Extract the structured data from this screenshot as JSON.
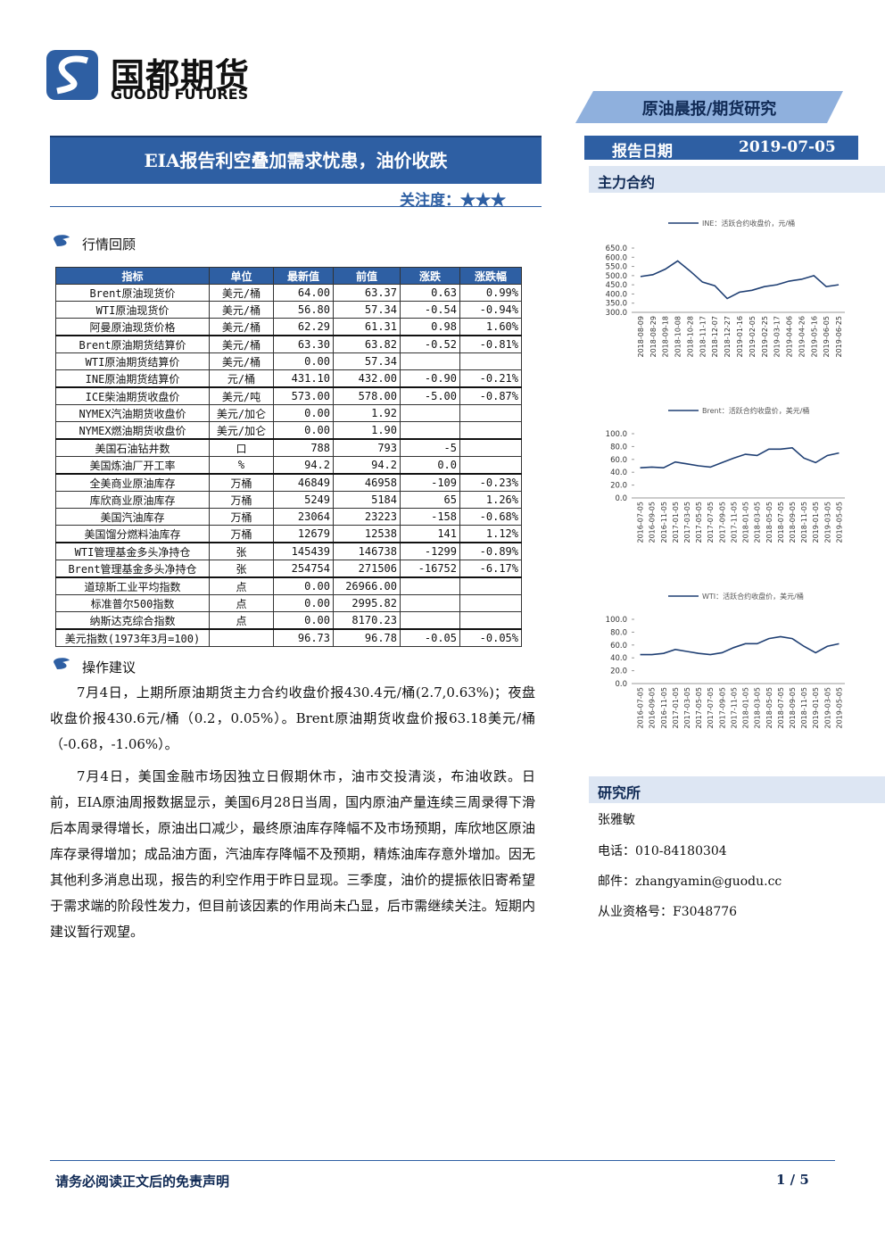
{
  "header": {
    "brand": "国都期货",
    "brand_en": "GUODU FUTURES",
    "category": "原油晨报/期货研究"
  },
  "report": {
    "title": "EIA报告利空叠加需求忧患，油价收跌",
    "attention_label": "关注度：",
    "attention_stars": "★★★",
    "date_label": "报告日期",
    "date": "2019-07-05"
  },
  "sections": {
    "market_review": "行情回顾",
    "advice": "操作建议",
    "main_contract": "主力合约",
    "research": "研究所"
  },
  "table": {
    "header": [
      "指标",
      "单位",
      "最新值",
      "前值",
      "涨跌",
      "涨跌幅"
    ],
    "rows": [
      [
        "Brent原油现货价",
        "美元/桶",
        "64.00",
        "63.37",
        "0.63",
        "0.99%"
      ],
      [
        "WTI原油现货价",
        "美元/桶",
        "56.80",
        "57.34",
        "-0.54",
        "-0.94%"
      ],
      [
        "阿曼原油现货价格",
        "美元/桶",
        "62.29",
        "61.31",
        "0.98",
        "1.60%"
      ],
      [
        "Brent原油期货结算价",
        "美元/桶",
        "63.30",
        "63.82",
        "-0.52",
        "-0.81%"
      ],
      [
        "WTI原油期货结算价",
        "美元/桶",
        "0.00",
        "57.34",
        null,
        null
      ],
      [
        "INE原油期货结算价",
        "元/桶",
        "431.10",
        "432.00",
        "-0.90",
        "-0.21%"
      ],
      [
        "ICE柴油期货收盘价",
        "美元/吨",
        "573.00",
        "578.00",
        "-5.00",
        "-0.87%"
      ],
      [
        "NYMEX汽油期货收盘价",
        "美元/加仑",
        "0.00",
        "1.92",
        null,
        null
      ],
      [
        "NYMEX燃油期货收盘价",
        "美元/加仑",
        "0.00",
        "1.90",
        null,
        null
      ],
      [
        "美国石油钻井数",
        "口",
        "788",
        "793",
        "-5",
        null
      ],
      [
        "美国炼油厂开工率",
        "%",
        "94.2",
        "94.2",
        "0.0",
        null
      ],
      [
        "全美商业原油库存",
        "万桶",
        "46849",
        "46958",
        "-109",
        "-0.23%"
      ],
      [
        "库欣商业原油库存",
        "万桶",
        "5249",
        "5184",
        "65",
        "1.26%"
      ],
      [
        "美国汽油库存",
        "万桶",
        "23064",
        "23223",
        "-158",
        "-0.68%"
      ],
      [
        "美国馏分燃料油库存",
        "万桶",
        "12679",
        "12538",
        "141",
        "1.12%"
      ],
      [
        "WTI管理基金多头净持仓",
        "张",
        "145439",
        "146738",
        "-1299",
        "-0.89%"
      ],
      [
        "Brent管理基金多头净持仓",
        "张",
        "254754",
        "271506",
        "-16752",
        "-6.17%"
      ],
      [
        "道琼斯工业平均指数",
        "点",
        "0.00",
        "26966.00",
        null,
        null
      ],
      [
        "标准普尔500指数",
        "点",
        "0.00",
        "2995.82",
        null,
        null
      ],
      [
        "纳斯达克综合指数",
        "点",
        "0.00",
        "8170.23",
        null,
        null
      ],
      [
        "美元指数(1973年3月=100)",
        null,
        "96.73",
        "96.78",
        "-0.05",
        "-0.05%"
      ]
    ]
  },
  "paragraphs": [
    "7月4日，上期所原油期货主力合约收盘价报430.4元/桶(2.7,0.63%)；夜盘收盘价报430.6元/桶（0.2，0.05%）。Brent原油期货收盘价报63.18美元/桶（-0.68，-1.06%）。",
    "7月4日，美国金融市场因独立日假期休市，油市交投清淡，布油收跌。日前，EIA原油周报数据显示，美国6月28日当周，国内原油产量连续三周录得下滑后本周录得增长，原油出口减少，最终原油库存降幅不及市场预期，库欣地区原油库存录得增加；成品油方面，汽油库存降幅不及预期，精炼油库存意外增加。因无其他利多消息出现，报告的利空作用于昨日显现。三季度，油价的提振依旧寄希望于需求端的阶段性发力，但目前该因素的作用尚未凸显，后市需继续关注。短期内建议暂行观望。"
  ],
  "contact": {
    "name": "张雅敏",
    "phone": "电话：010-84180304",
    "email": "邮件：zhangyamin@guodu.cc",
    "license": "从业资格号：F3048776"
  },
  "footer": {
    "disclaimer": "请务必阅读正文后的免责声明",
    "page": "1 / 5"
  },
  "chart_data": [
    {
      "type": "line",
      "x": [
        "2018-08-09",
        "2018-08-29",
        "2018-09-18",
        "2018-10-08",
        "2018-10-28",
        "2018-11-17",
        "2018-12-07",
        "2018-12-27",
        "2019-01-16",
        "2019-02-05",
        "2019-02-25",
        "2019-03-17",
        "2019-04-06",
        "2019-04-26",
        "2019-05-16",
        "2019-06-05",
        "2019-06-25"
      ],
      "series": [
        {
          "name": "INE：活跃合约收盘价，元/桶",
          "color": "#1f3f73",
          "values": [
            495,
            505,
            535,
            580,
            525,
            465,
            445,
            375,
            410,
            420,
            440,
            450,
            470,
            480,
            500,
            440,
            450
          ]
        }
      ],
      "ylim": [
        300,
        650
      ],
      "yticks": [
        {
          "value": 300,
          "label": "300.0"
        },
        {
          "value": 350,
          "label": "350.0"
        },
        {
          "value": 400,
          "label": "400.0"
        },
        {
          "value": 450,
          "label": "450.0"
        },
        {
          "value": 500,
          "label": "500.0"
        },
        {
          "value": 550,
          "label": "550.0"
        },
        {
          "value": 600,
          "label": "600.0"
        },
        {
          "value": 650,
          "label": "650.0"
        }
      ]
    },
    {
      "type": "line",
      "x": [
        "2016-07-05",
        "2016-09-05",
        "2016-11-05",
        "2017-01-05",
        "2017-03-05",
        "2017-05-05",
        "2017-07-05",
        "2017-09-05",
        "2017-11-05",
        "2018-01-05",
        "2018-03-05",
        "2018-05-05",
        "2018-07-05",
        "2018-09-05",
        "2018-11-05",
        "2019-01-05",
        "2019-03-05",
        "2019-05-05"
      ],
      "series": [
        {
          "name": "Brent：活跃合约收盘价，美元/桶",
          "color": "#1f3f73",
          "values": [
            47,
            48,
            47,
            56,
            53,
            50,
            48,
            55,
            62,
            68,
            66,
            76,
            76,
            78,
            62,
            55,
            66,
            70
          ]
        }
      ],
      "ylim": [
        0,
        100
      ],
      "yticks": [
        {
          "value": 0,
          "label": "0.0"
        },
        {
          "value": 20,
          "label": "20.0"
        },
        {
          "value": 40,
          "label": "40.0"
        },
        {
          "value": 60,
          "label": "60.0"
        },
        {
          "value": 80,
          "label": "80.0"
        },
        {
          "value": 100,
          "label": "100.0"
        }
      ]
    },
    {
      "type": "line",
      "x": [
        "2016-07-05",
        "2016-09-05",
        "2016-11-05",
        "2017-01-05",
        "2017-03-05",
        "2017-05-05",
        "2017-07-05",
        "2017-09-05",
        "2017-11-05",
        "2018-01-05",
        "2018-03-05",
        "2018-05-05",
        "2018-07-05",
        "2018-09-05",
        "2018-11-05",
        "2019-01-05",
        "2019-03-05",
        "2019-05-05"
      ],
      "series": [
        {
          "name": "WTI：活跃合约收盘价，美元/桶",
          "color": "#1f3f73",
          "values": [
            45,
            45,
            47,
            53,
            50,
            47,
            45,
            48,
            56,
            62,
            62,
            70,
            73,
            70,
            58,
            48,
            58,
            62
          ]
        }
      ],
      "ylim": [
        0,
        100
      ],
      "yticks": [
        {
          "value": 0,
          "label": "0.0"
        },
        {
          "value": 20,
          "label": "20.0"
        },
        {
          "value": 40,
          "label": "40.0"
        },
        {
          "value": 60,
          "label": "60.0"
        },
        {
          "value": 80,
          "label": "80.0"
        },
        {
          "value": 100,
          "label": "100.0"
        }
      ]
    }
  ]
}
